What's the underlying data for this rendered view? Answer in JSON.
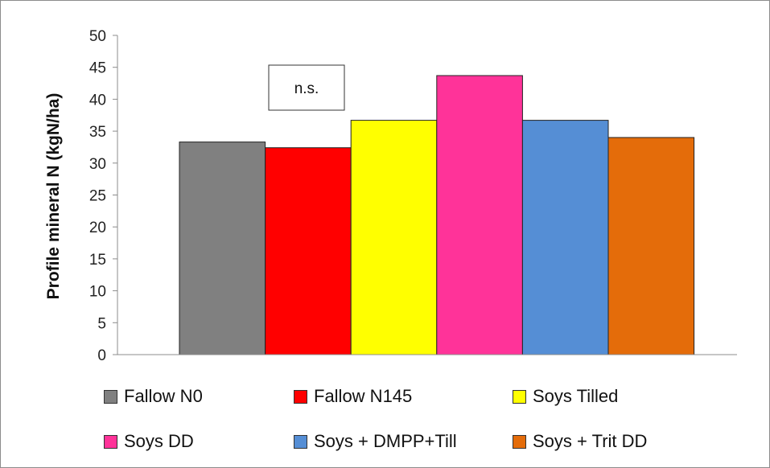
{
  "chart_data": {
    "type": "bar",
    "ylabel": "Profile mineral N (kgN/ha)",
    "ylim": [
      0,
      50
    ],
    "yticks": [
      0,
      5,
      10,
      15,
      20,
      25,
      30,
      35,
      40,
      45,
      50
    ],
    "grid": false,
    "legend_position": "bottom",
    "annotation": "n.s.",
    "series": [
      {
        "name": "Fallow N0",
        "value": 33.3,
        "color": "#808080"
      },
      {
        "name": "Fallow N145",
        "value": 32.4,
        "color": "#ff0000"
      },
      {
        "name": "Soys Tilled",
        "value": 36.7,
        "color": "#ffff00"
      },
      {
        "name": "Soys DD",
        "value": 43.7,
        "color": "#ff3399"
      },
      {
        "name": "Soys + DMPP+Till",
        "value": 36.7,
        "color": "#558ed5"
      },
      {
        "name": "Soys + Trit DD",
        "value": 34.0,
        "color": "#e46c0a"
      }
    ]
  }
}
